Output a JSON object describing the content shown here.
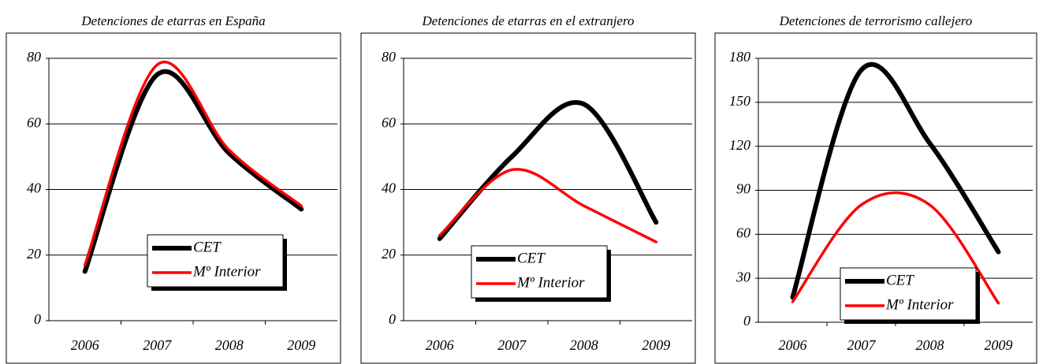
{
  "chart_data": [
    {
      "type": "line",
      "title": "Detenciones de etarras en España",
      "categories": [
        "2006",
        "2007",
        "2008",
        "2009"
      ],
      "series": [
        {
          "name": "CET",
          "color": "#000000",
          "values": [
            15,
            75,
            51,
            34
          ]
        },
        {
          "name": "Mº Interior",
          "color": "#ff0000",
          "values": [
            17,
            78,
            52,
            35
          ]
        }
      ],
      "ylim": [
        0,
        80
      ],
      "yticks": [
        0,
        20,
        40,
        60,
        80
      ],
      "grid": true
    },
    {
      "type": "line",
      "title": "Detenciones de etarras en el extranjero",
      "categories": [
        "2006",
        "2007",
        "2008",
        "2009"
      ],
      "series": [
        {
          "name": "CET",
          "color": "#000000",
          "values": [
            25,
            50,
            66,
            30
          ]
        },
        {
          "name": "Mº Interior",
          "color": "#ff0000",
          "values": [
            26,
            46,
            35,
            24
          ]
        }
      ],
      "ylim": [
        0,
        80
      ],
      "yticks": [
        0,
        20,
        40,
        60,
        80
      ],
      "grid": true
    },
    {
      "type": "line",
      "title": "Detenciones de terrorismo callejero",
      "categories": [
        "2006",
        "2007",
        "2008",
        "2009"
      ],
      "series": [
        {
          "name": "CET",
          "color": "#000000",
          "values": [
            17,
            172,
            122,
            48
          ]
        },
        {
          "name": "Mº Interior",
          "color": "#ff0000",
          "values": [
            14,
            80,
            80,
            13
          ]
        }
      ],
      "ylim": [
        0,
        180
      ],
      "yticks": [
        0,
        30,
        60,
        90,
        120,
        150,
        180
      ],
      "grid": true
    }
  ]
}
